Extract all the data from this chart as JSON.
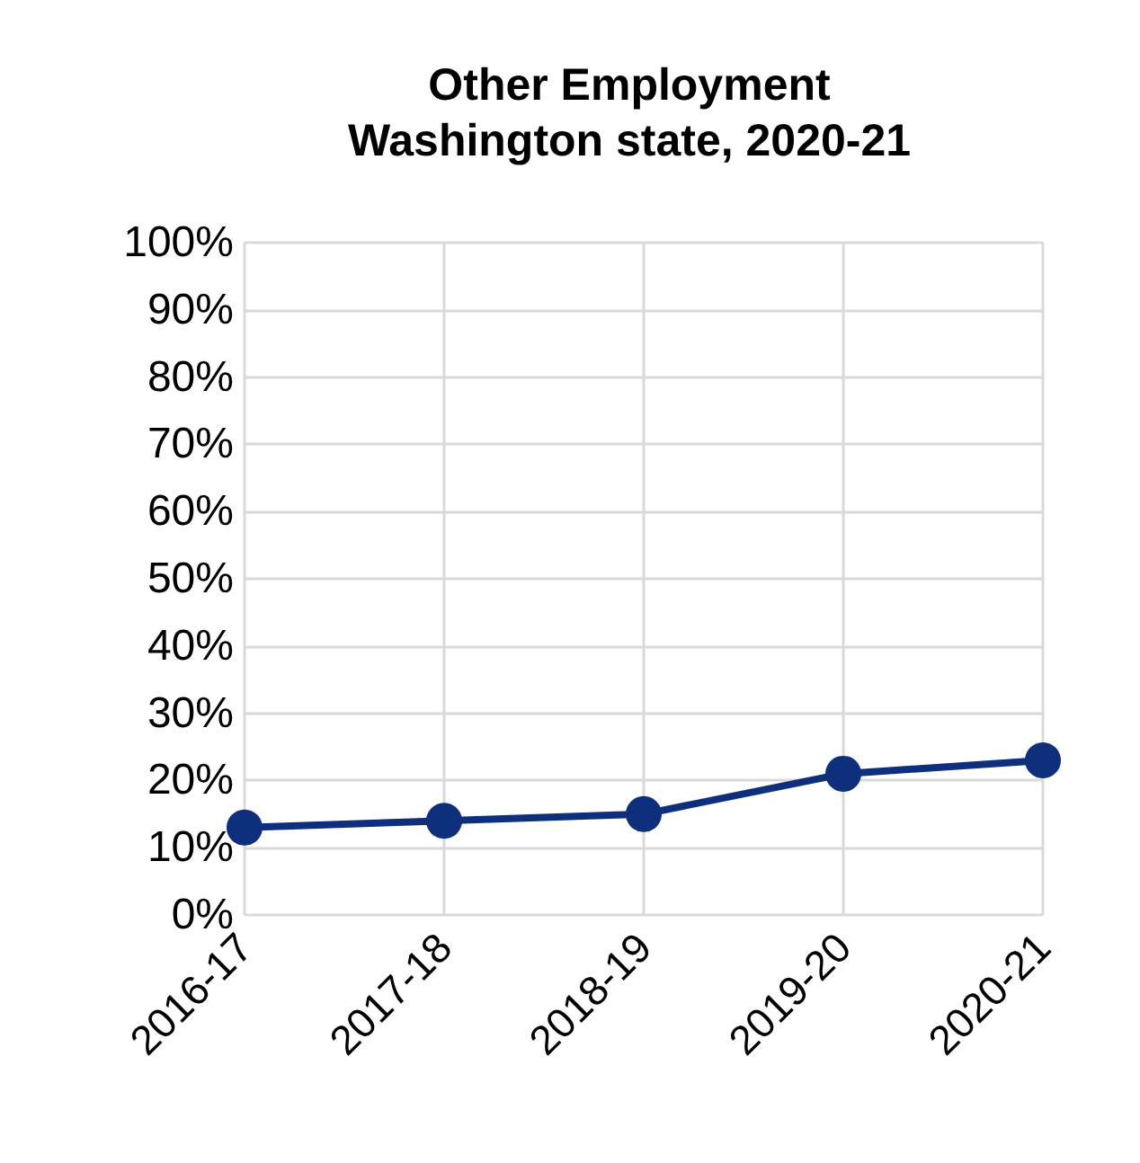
{
  "chart_data": {
    "type": "line",
    "title": "Other Employment",
    "subtitle": "Washington state, 2020-21",
    "categories": [
      "2016-17",
      "2017-18",
      "2018-19",
      "2019-20",
      "2020-21"
    ],
    "series": [
      {
        "color": "#0e2f7c",
        "values": [
          13,
          14,
          15,
          21,
          23
        ]
      }
    ],
    "ylim": [
      0,
      100
    ],
    "yticks": [
      {
        "value": 0,
        "label": "0%"
      },
      {
        "value": 10,
        "label": "10%"
      },
      {
        "value": 20,
        "label": "20%"
      },
      {
        "value": 30,
        "label": "30%"
      },
      {
        "value": 40,
        "label": "40%"
      },
      {
        "value": 50,
        "label": "50%"
      },
      {
        "value": 60,
        "label": "60%"
      },
      {
        "value": 70,
        "label": "70%"
      },
      {
        "value": 80,
        "label": "80%"
      },
      {
        "value": 90,
        "label": "90%"
      },
      {
        "value": 100,
        "label": "100%"
      }
    ],
    "grid": true,
    "marker": "circle",
    "line_style": "solid"
  }
}
